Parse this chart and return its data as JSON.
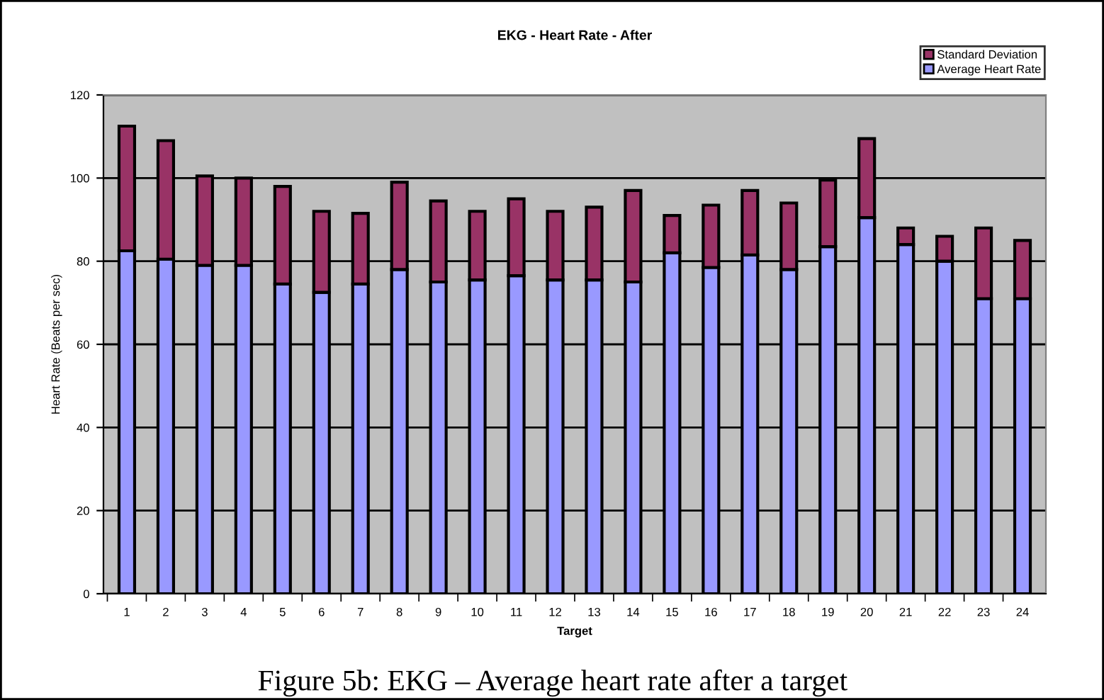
{
  "chart_data": {
    "type": "bar",
    "stacked": true,
    "title": "EKG - Heart Rate - After",
    "xlabel": "Target",
    "ylabel": "Heart Rate (Beats per sec)",
    "categories": [
      "1",
      "2",
      "3",
      "4",
      "5",
      "6",
      "7",
      "8",
      "9",
      "10",
      "11",
      "12",
      "13",
      "14",
      "15",
      "16",
      "17",
      "18",
      "19",
      "20",
      "21",
      "22",
      "23",
      "24"
    ],
    "series": [
      {
        "name": "Average Heart Rate",
        "color": "#9999ff",
        "values": [
          82.5,
          80.5,
          79,
          79,
          74.5,
          72.5,
          74.5,
          78,
          75,
          75.5,
          76.5,
          75.5,
          75.5,
          75,
          82,
          78.5,
          81.5,
          78,
          83.5,
          90.5,
          84,
          80,
          71,
          71
        ]
      },
      {
        "name": "Standard Deviation",
        "color": "#993366",
        "values": [
          30,
          28.5,
          21.5,
          21,
          23.5,
          19.5,
          17,
          21,
          19.5,
          16.5,
          18.5,
          16.5,
          17.5,
          22,
          9,
          15,
          15.5,
          16,
          16,
          19,
          4,
          6,
          17,
          14
        ]
      }
    ],
    "ylim": [
      0,
      120
    ],
    "yticks": [
      0,
      20,
      40,
      60,
      80,
      100,
      120
    ],
    "grid": "y",
    "legend": "top right",
    "annotations": [
      "Figure 5b: EKG – Average heart rate after a target"
    ]
  }
}
